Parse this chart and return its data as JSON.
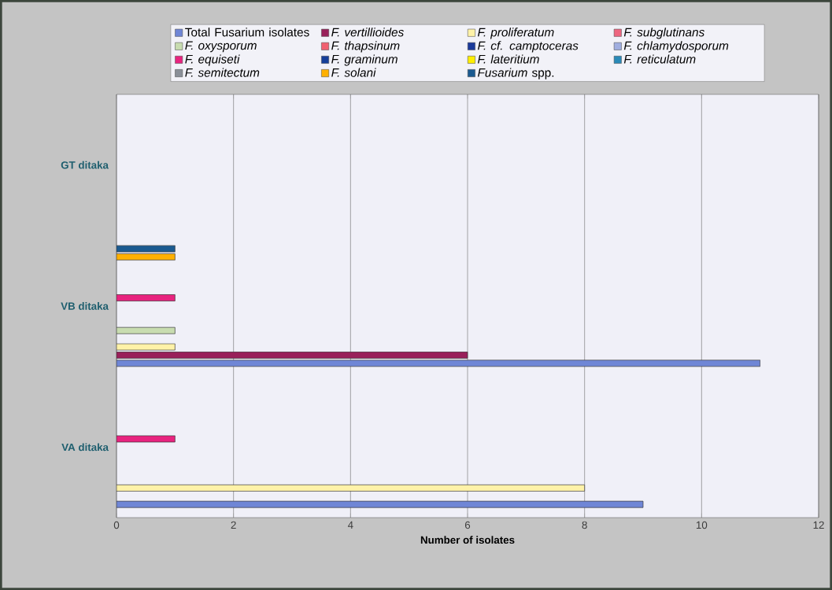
{
  "chart_data": {
    "type": "bar",
    "orientation": "horizontal",
    "xlabel": "Number of isolates",
    "categories": [
      "GT ditaka",
      "VB ditaka",
      "VA ditaka"
    ],
    "series": [
      {
        "name": "Total Fusarium isolates",
        "color": "#6f86d6",
        "values": [
          null,
          11,
          9
        ]
      },
      {
        "name": "*F. vertillioides*",
        "color": "#99205a",
        "values": [
          null,
          6,
          null
        ]
      },
      {
        "name": "*F. proliferatum*",
        "color": "#fff2a8",
        "values": [
          null,
          1,
          8
        ]
      },
      {
        "name": "*F. subglutinans*",
        "color": "#ee6680",
        "values": [
          null,
          null,
          null
        ]
      },
      {
        "name": "*F. oxysporum*",
        "color": "#c8dcb0",
        "values": [
          null,
          1,
          null
        ]
      },
      {
        "name": "*F. thapsinum*",
        "color": "#f06070",
        "values": [
          null,
          null,
          null
        ]
      },
      {
        "name": "*F. cf. camptoceras*",
        "color": "#1a3a9a",
        "values": [
          null,
          null,
          null
        ]
      },
      {
        "name": "*F. chlamydosporum*",
        "color": "#a0aee0",
        "values": [
          null,
          null,
          null
        ]
      },
      {
        "name": "*F. equiseti*",
        "color": "#e8237f",
        "values": [
          null,
          1,
          1
        ]
      },
      {
        "name": "*F. graminum*",
        "color": "#163f99",
        "values": [
          null,
          null,
          null
        ]
      },
      {
        "name": "*F. lateritium*",
        "color": "#ffee00",
        "values": [
          null,
          null,
          null
        ]
      },
      {
        "name": "*F. reticulatum*",
        "color": "#2a8ab8",
        "values": [
          null,
          null,
          null
        ]
      },
      {
        "name": "*F. semitectum*",
        "color": "#8a8f98",
        "values": [
          null,
          null,
          null
        ]
      },
      {
        "name": "*F. solani*",
        "color": "#ffb000",
        "values": [
          null,
          1,
          null
        ]
      },
      {
        "name": "*Fusarium* spp.",
        "color": "#1a5a90",
        "values": [
          null,
          1,
          null
        ]
      }
    ],
    "xlim": [
      0,
      12
    ],
    "xticks": [
      0,
      2,
      4,
      6,
      8,
      10,
      12
    ],
    "grid": "x",
    "legend": "top"
  }
}
